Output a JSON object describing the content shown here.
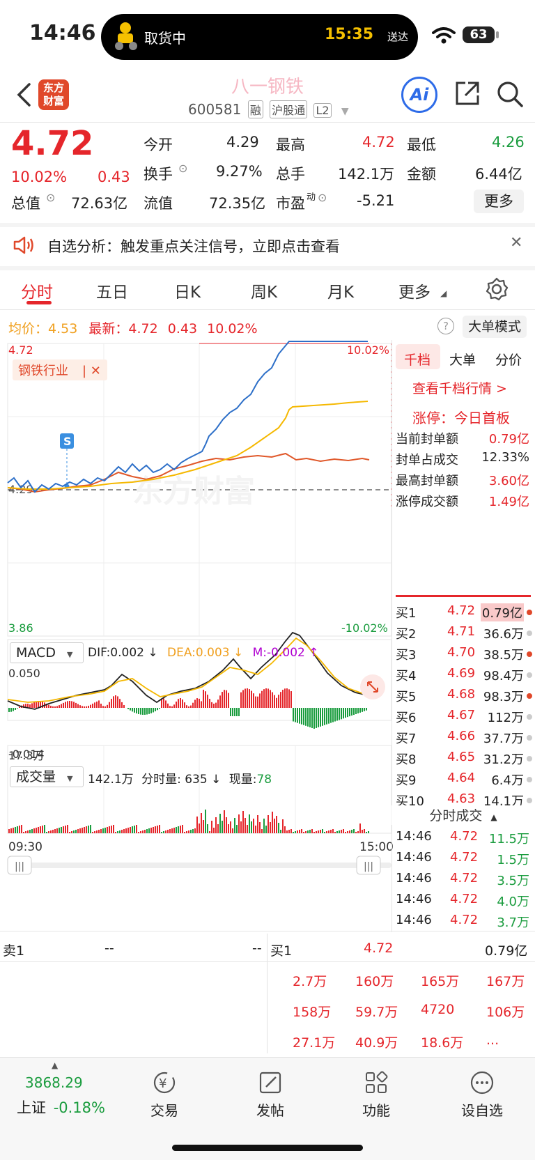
{
  "status": {
    "time": "14:46",
    "island_text": "取货中",
    "island_time": "15:35",
    "island_sub": "送达",
    "battery": "63"
  },
  "header": {
    "logo_line1": "东方",
    "logo_line2": "财富",
    "name": "八一钢铁",
    "code": "600581",
    "tags": [
      "融",
      "沪股通",
      "L2"
    ],
    "ai": "Ai"
  },
  "quote": {
    "price": "4.72",
    "pct": "10.02%",
    "chg": "0.43",
    "open_label": "今开",
    "open": "4.29",
    "high_label": "最高",
    "high": "4.72",
    "low_label": "最低",
    "low": "4.26",
    "turnover_label": "换手",
    "turnover": "9.27%",
    "volume_label": "总手",
    "volume": "142.1万",
    "amount_label": "金额",
    "amount": "6.44亿",
    "mktcap_label": "总值",
    "mktcap": "72.63亿",
    "float_label": "流值",
    "float": "72.35亿",
    "pe_label": "市盈",
    "pe_sup": "动",
    "pe": "-5.21",
    "more": "更多"
  },
  "notice": {
    "text": "自选分析：触发重点关注信号，立即点击查看"
  },
  "tabs": [
    "分时",
    "五日",
    "日K",
    "周K",
    "月K",
    "更多"
  ],
  "info": {
    "avg_label": "均价：",
    "avg": "4.53",
    "last_label": "最新：",
    "last": "4.72",
    "chg": "0.43",
    "pct": "10.02%",
    "bigorder": "大单模式"
  },
  "chart": {
    "ymax": "4.72",
    "ymin": "3.86",
    "pmax": "10.02%",
    "pmin": "-10.02%",
    "pre_close": "4.29",
    "industry_tag": "钢铁行业",
    "s_marker": "S",
    "watermark": "东方财富",
    "macd_label": "MACD",
    "dif": "DIF:0.002 ↓",
    "dea": "DEA:0.003 ↓",
    "m": "M:-0.002 ↑",
    "macd_max": "0.050",
    "macd_min": "-0.014",
    "vol_label": "成交量",
    "vol_stats": "142.1万",
    "vol_fen": "分时量: 635 ↓",
    "vol_now_label": "现量:",
    "vol_now": "78",
    "vol_max": "17.3万",
    "t_start": "09:30",
    "t_end": "15:00"
  },
  "right_panel": {
    "tabs": [
      "千档",
      "大单",
      "分价"
    ],
    "link": "查看千档行情 >",
    "limit_label": "涨停：",
    "limit_value": "今日首板",
    "rows": [
      {
        "label": "当前封单额",
        "value": "0.79亿"
      },
      {
        "label": "封单占成交",
        "value": "12.33%"
      },
      {
        "label": "最高封单额",
        "value": "3.60亿"
      },
      {
        "label": "涨停成交额",
        "value": "1.49亿"
      }
    ],
    "depth": [
      {
        "label": "买1",
        "price": "4.72",
        "vol": "0.79亿",
        "dot": "red"
      },
      {
        "label": "买2",
        "price": "4.71",
        "vol": "36.6万",
        "dot": "gray"
      },
      {
        "label": "买3",
        "price": "4.70",
        "vol": "38.5万",
        "dot": "red"
      },
      {
        "label": "买4",
        "price": "4.69",
        "vol": "98.4万",
        "dot": "gray"
      },
      {
        "label": "买5",
        "price": "4.68",
        "vol": "98.3万",
        "dot": "red"
      },
      {
        "label": "买6",
        "price": "4.67",
        "vol": "112万",
        "dot": "gray"
      },
      {
        "label": "买7",
        "price": "4.66",
        "vol": "37.7万",
        "dot": "gray"
      },
      {
        "label": "买8",
        "price": "4.65",
        "vol": "31.2万",
        "dot": "gray"
      },
      {
        "label": "买9",
        "price": "4.64",
        "vol": "6.4万",
        "dot": "gray"
      },
      {
        "label": "买10",
        "price": "4.63",
        "vol": "14.1万",
        "dot": "gray"
      }
    ],
    "ticks_title": "分时成交",
    "ticks": [
      {
        "t": "14:46",
        "p": "4.72",
        "v": "11.5万"
      },
      {
        "t": "14:46",
        "p": "4.72",
        "v": "1.5万"
      },
      {
        "t": "14:46",
        "p": "4.72",
        "v": "3.5万"
      },
      {
        "t": "14:46",
        "p": "4.72",
        "v": "4.0万"
      },
      {
        "t": "14:46",
        "p": "4.72",
        "v": "3.7万"
      }
    ]
  },
  "orderbook": {
    "sell_label": "卖1",
    "sell_price": "--",
    "sell_vol": "--",
    "buy_label": "买1",
    "buy_price": "4.72",
    "buy_vol": "0.79亿",
    "queue": [
      [
        "2.7万",
        "160万",
        "165万",
        "167万"
      ],
      [
        "158万",
        "59.7万",
        "4720",
        "106万"
      ],
      [
        "27.1万",
        "40.9万",
        "18.6万",
        "..."
      ]
    ]
  },
  "nav": {
    "index_value": "3868.29",
    "index_name": "上证",
    "index_pct": "-0.18%",
    "items": [
      "交易",
      "发帖",
      "功能",
      "设自选"
    ]
  }
}
